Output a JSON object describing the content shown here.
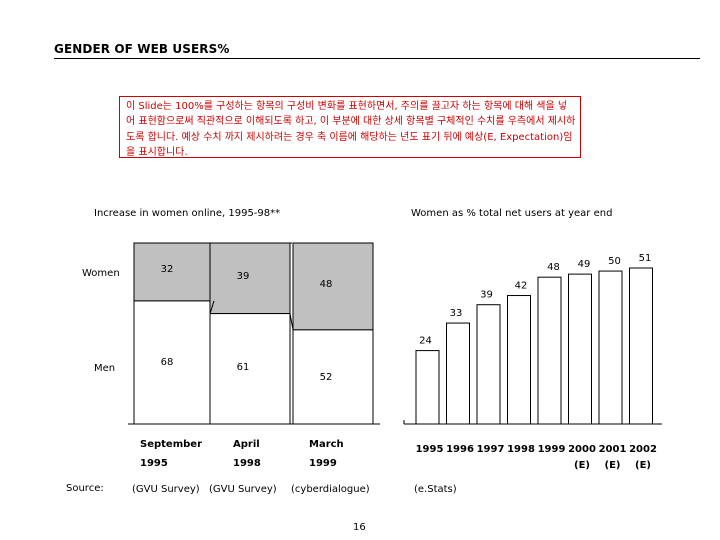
{
  "title": "GENDER OF WEB USERS%",
  "note": "이 Slide는 100%를 구성하는 항목의 구성비 변화를 표현하면서, 주의를 끌고자 하는 항목에 대해 색을 넣어 표현함으로써 직관적으로 이해되도록 하고, 이 부분에 대한 상세 항목별 구체적인 수치를 우측에서 제시하도록 합니다. 예상 수치 까지 제시하려는 경우 축 이름에 해당하는 년도 표기 뒤에 예상(E, Expectation)임을 표시합니다.",
  "source_label": "Source:",
  "page_number": "16",
  "colors": {
    "women_fill": "#c0c0c0",
    "men_fill": "#ffffff",
    "note_color": "#cc0000"
  },
  "chart_data": [
    {
      "type": "bar",
      "stacked": true,
      "percent": true,
      "title": "Increase in women online, 1995-98**",
      "categories": [
        {
          "label_lines": [
            "September",
            "1995"
          ],
          "source": "(GVU Survey)"
        },
        {
          "label_lines": [
            "April",
            "1998"
          ],
          "source": "(GVU Survey)"
        },
        {
          "label_lines": [
            "March",
            "1999"
          ],
          "source": "(cyberdialogue)"
        }
      ],
      "series": [
        {
          "name": "Women",
          "values": [
            32,
            39,
            48
          ]
        },
        {
          "name": "Men",
          "values": [
            68,
            61,
            52
          ]
        }
      ],
      "ylim": [
        0,
        100
      ]
    },
    {
      "type": "bar",
      "title": "Women as % total net users at year end",
      "categories": [
        {
          "label_lines": [
            "1995",
            ""
          ]
        },
        {
          "label_lines": [
            "1996",
            ""
          ]
        },
        {
          "label_lines": [
            "1997",
            ""
          ]
        },
        {
          "label_lines": [
            "1998",
            ""
          ]
        },
        {
          "label_lines": [
            "1999",
            ""
          ]
        },
        {
          "label_lines": [
            "2000",
            "(E)"
          ]
        },
        {
          "label_lines": [
            "2001",
            "(E)"
          ]
        },
        {
          "label_lines": [
            "2002",
            "(E)"
          ]
        }
      ],
      "values": [
        24,
        33,
        39,
        42,
        48,
        49,
        50,
        51
      ],
      "source": "(e.Stats)",
      "ylim": [
        0,
        55
      ]
    }
  ]
}
